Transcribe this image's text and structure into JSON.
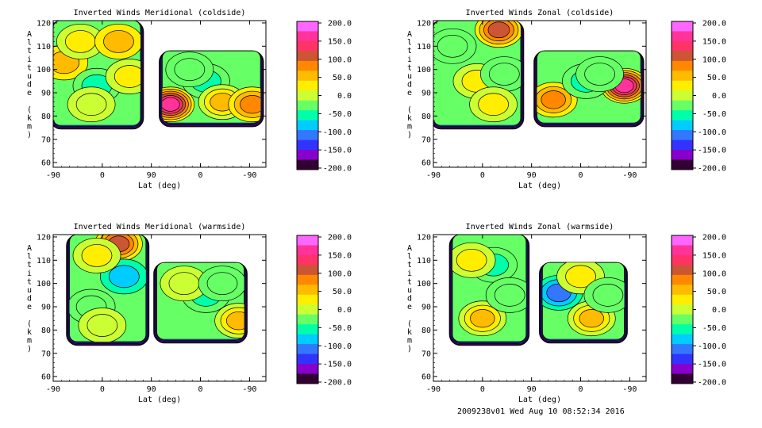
{
  "chart_data": [
    {
      "type": "heatmap",
      "title": "Inverted Winds Meridional (coldside)",
      "xlabel": "Lat (deg)",
      "ylabel": "Altitude (km)",
      "x_ticks": [
        "-90",
        "0",
        "90",
        "0",
        "-90"
      ],
      "y_ticks": [
        "60",
        "70",
        "80",
        "90",
        "100",
        "110",
        "120"
      ],
      "ylim": [
        58,
        121
      ],
      "colorbar_ticks": [
        "200.0",
        "150.0",
        "100.0",
        "50.0",
        "0.0",
        "-50.0",
        "-100.0",
        "-150.0",
        "-200.0"
      ],
      "colorbar_range": [
        -200,
        200
      ],
      "blocks": [
        {
          "x": [
            -90,
            70
          ],
          "y": [
            76,
            121
          ],
          "hotspots": [
            {
              "x": -70,
              "y": 103,
              "v": 45
            },
            {
              "x": -40,
              "y": 112,
              "v": 35
            },
            {
              "x": -10,
              "y": 93,
              "v": -55
            },
            {
              "x": 30,
              "y": 112,
              "v": 50
            },
            {
              "x": 50,
              "y": 97,
              "v": 25
            },
            {
              "x": -20,
              "y": 85,
              "v": 5
            }
          ]
        },
        {
          "x": [
            110,
            290
          ],
          "y": [
            77,
            108
          ],
          "hotspots": [
            {
              "x": 125,
              "y": 85,
              "v": 160
            },
            {
              "x": 190,
              "y": 95,
              "v": -45
            },
            {
              "x": 220,
              "y": 86,
              "v": 60
            },
            {
              "x": 275,
              "y": 85,
              "v": 80
            },
            {
              "x": 160,
              "y": 100,
              "v": -20
            }
          ]
        }
      ]
    },
    {
      "type": "heatmap",
      "title": "Inverted Winds Zonal (coldside)",
      "xlabel": "Lat (deg)",
      "ylabel": "Altitude (km)",
      "x_ticks": [
        "-90",
        "0",
        "90",
        "0",
        "-90"
      ],
      "y_ticks": [
        "60",
        "70",
        "80",
        "90",
        "100",
        "110",
        "120"
      ],
      "ylim": [
        58,
        121
      ],
      "colorbar_ticks": [
        "200.0",
        "150.0",
        "100.0",
        "50.0",
        "0.0",
        "-50.0",
        "-100.0",
        "-150.0",
        "-200.0"
      ],
      "colorbar_range": [
        -200,
        200
      ],
      "blocks": [
        {
          "x": [
            -90,
            70
          ],
          "y": [
            76,
            121
          ],
          "hotspots": [
            {
              "x": 30,
              "y": 117,
              "v": 110
            },
            {
              "x": -10,
              "y": 95,
              "v": 30
            },
            {
              "x": -55,
              "y": 110,
              "v": -20
            },
            {
              "x": 40,
              "y": 98,
              "v": -30
            },
            {
              "x": 20,
              "y": 85,
              "v": 30
            }
          ]
        },
        {
          "x": [
            100,
            290
          ],
          "y": [
            77,
            108
          ],
          "hotspots": [
            {
              "x": 260,
              "y": 93,
              "v": 160
            },
            {
              "x": 130,
              "y": 87,
              "v": 80
            },
            {
              "x": 190,
              "y": 95,
              "v": -60
            },
            {
              "x": 215,
              "y": 98,
              "v": -20
            }
          ]
        }
      ]
    },
    {
      "type": "heatmap",
      "title": "Inverted Winds Meridional (warmside)",
      "xlabel": "Lat (deg)",
      "ylabel": "Altitude (km)",
      "x_ticks": [
        "-90",
        "0",
        "90",
        "0",
        "-90"
      ],
      "y_ticks": [
        "60",
        "70",
        "80",
        "90",
        "100",
        "110",
        "120"
      ],
      "ylim": [
        58,
        121
      ],
      "colorbar_ticks": [
        "200.0",
        "150.0",
        "100.0",
        "50.0",
        "0.0",
        "-50.0",
        "-100.0",
        "-150.0",
        "-200.0"
      ],
      "colorbar_range": [
        -200,
        200
      ],
      "blocks": [
        {
          "x": [
            -60,
            80
          ],
          "y": [
            75,
            121
          ],
          "hotspots": [
            {
              "x": 30,
              "y": 117,
              "v": 110
            },
            {
              "x": 40,
              "y": 103,
              "v": -70
            },
            {
              "x": -10,
              "y": 112,
              "v": 40
            },
            {
              "x": -20,
              "y": 90,
              "v": -20
            },
            {
              "x": 0,
              "y": 82,
              "v": 10
            }
          ]
        },
        {
          "x": [
            100,
            260
          ],
          "y": [
            76,
            109
          ],
          "hotspots": [
            {
              "x": 190,
              "y": 95,
              "v": -45
            },
            {
              "x": 250,
              "y": 84,
              "v": 60
            },
            {
              "x": 150,
              "y": 100,
              "v": -10
            },
            {
              "x": 220,
              "y": 100,
              "v": -30
            }
          ]
        }
      ]
    },
    {
      "type": "heatmap",
      "title": "Inverted Winds Zonal (warmside)",
      "xlabel": "Lat (deg)",
      "ylabel": "Altitude (km)",
      "x_ticks": [
        "-90",
        "0",
        "90",
        "0",
        "-90"
      ],
      "y_ticks": [
        "60",
        "70",
        "80",
        "90",
        "100",
        "110",
        "120"
      ],
      "ylim": [
        58,
        121
      ],
      "colorbar_ticks": [
        "200.0",
        "150.0",
        "100.0",
        "50.0",
        "0.0",
        "-50.0",
        "-100.0",
        "-150.0",
        "-200.0"
      ],
      "colorbar_range": [
        -200,
        200
      ],
      "blocks": [
        {
          "x": [
            -55,
            80
          ],
          "y": [
            75,
            121
          ],
          "hotspots": [
            {
              "x": 0,
              "y": 85,
              "v": 60
            },
            {
              "x": 20,
              "y": 108,
              "v": -55
            },
            {
              "x": -20,
              "y": 110,
              "v": 20
            },
            {
              "x": 50,
              "y": 95,
              "v": -20
            }
          ]
        },
        {
          "x": [
            110,
            260
          ],
          "y": [
            76,
            109
          ],
          "hotspots": [
            {
              "x": 140,
              "y": 96,
              "v": -100
            },
            {
              "x": 200,
              "y": 85,
              "v": 60
            },
            {
              "x": 180,
              "y": 103,
              "v": 30
            },
            {
              "x": 230,
              "y": 95,
              "v": -30
            }
          ]
        }
      ]
    }
  ],
  "footer": "2009238v01 Wed Aug 10 08:52:34 2016",
  "colors": {
    "scale": [
      "#ff66ff",
      "#ff3399",
      "#ff3366",
      "#cc5533",
      "#ff8800",
      "#ffbb00",
      "#ffee00",
      "#ccff33",
      "#66ff66",
      "#00ffaa",
      "#00ccff",
      "#3377ff",
      "#3333ff",
      "#8800cc",
      "#330033"
    ],
    "contour": "#000000"
  }
}
